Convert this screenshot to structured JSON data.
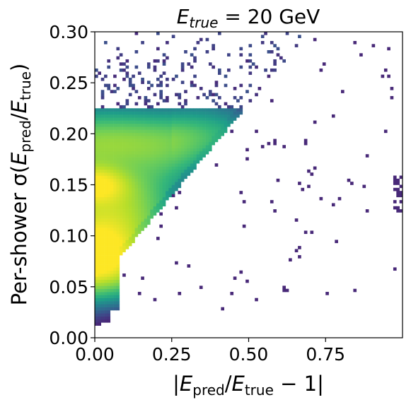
{
  "chart_data": {
    "type": "heatmap",
    "title": "E_true = 20 GeV",
    "title_parts": {
      "main": "E",
      "sub": "true",
      "rest": " = 20 GeV"
    },
    "xlabel": "|E_pred/E_true − 1|",
    "xlabel_parts": {
      "open": "|",
      "e1": "E",
      "s1": "pred",
      "slash": "/",
      "e2": "E",
      "s2": "true",
      "rest": " − 1|"
    },
    "ylabel": "Per-shower σ(E_pred/E_true)",
    "ylabel_parts": {
      "pre": "Per-shower σ(",
      "e1": "E",
      "s1": "pred",
      "slash": "/",
      "e2": "E",
      "s2": "true",
      "close": ")"
    },
    "xlim": [
      0,
      1.0
    ],
    "ylim": [
      0,
      0.3
    ],
    "x_ticks": [
      "0.00",
      "0.25",
      "0.50",
      "0.75"
    ],
    "x_tick_values": [
      0,
      0.25,
      0.5,
      0.75
    ],
    "y_ticks": [
      "0.00",
      "0.05",
      "0.10",
      "0.15",
      "0.20",
      "0.25",
      "0.30"
    ],
    "y_tick_values": [
      0,
      0.05,
      0.1,
      0.15,
      0.2,
      0.25,
      0.3
    ],
    "colormap": "viridis",
    "bins": {
      "x": 100,
      "y": 100
    },
    "density_description": "2D histogram: dense core at x 0–0.2 with sigma ~0.07 and ~0.15; band rising along sigma ≈ 0.07 + 0.36x; sparse ridge near sigma 0.19–0.22 peaking around x 0.8, falling to 0.12 at x 1.0",
    "grid": false
  }
}
